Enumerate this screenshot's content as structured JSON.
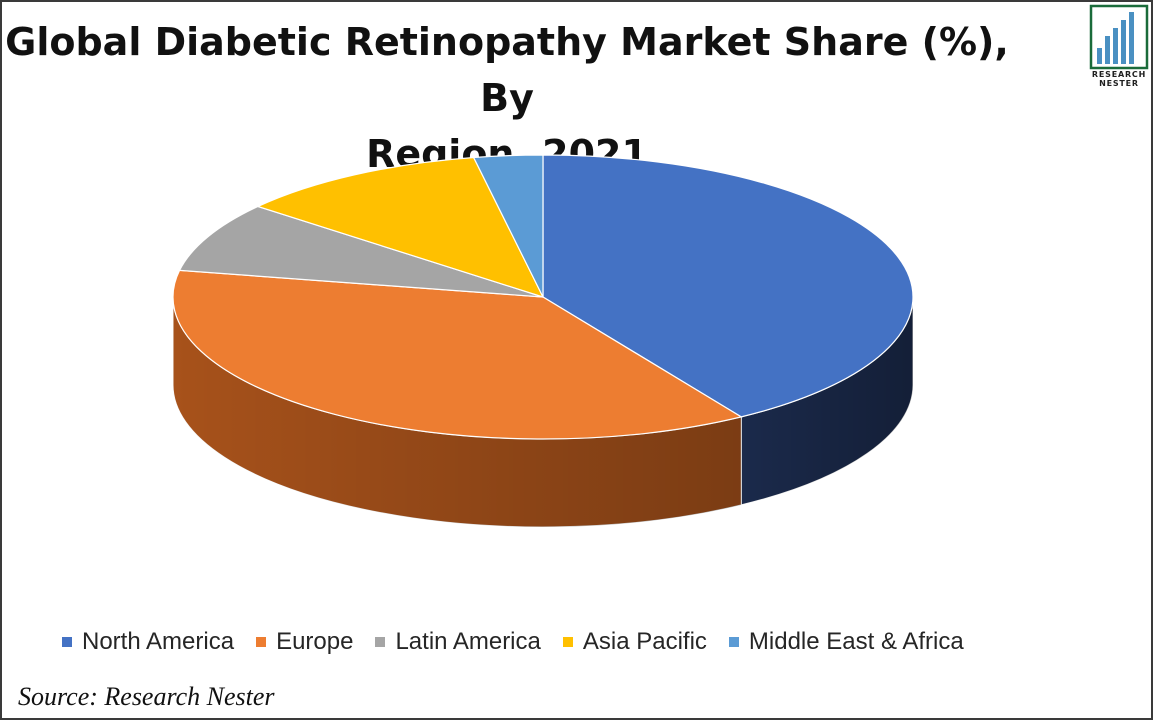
{
  "header": {
    "title_line1": "Global Diabetic Retinopathy Market Share (%), By",
    "title_line2": "Region, 2021"
  },
  "logo": {
    "line1": "RESEARCH",
    "line2": "NESTER",
    "icon": "bar-chart-logo-icon",
    "color": "#1a6b3a"
  },
  "footer": {
    "source": "Source: Research Nester"
  },
  "chart_data": {
    "type": "pie",
    "style": "3d",
    "title": "Global Diabetic Retinopathy Market Share (%), By Region, 2021",
    "legend_position": "bottom",
    "series": [
      {
        "name": "North America",
        "value": 41,
        "color": "#4472c4",
        "side_color": "#1c2c4f"
      },
      {
        "name": "Europe",
        "value": 37,
        "color": "#ed7d31",
        "side_color": "#b0561c"
      },
      {
        "name": "Latin America",
        "value": 8,
        "color": "#a5a5a5",
        "side_color": "#6d6d6d"
      },
      {
        "name": "Asia Pacific",
        "value": 11,
        "color": "#ffc000",
        "side_color": "#b38600"
      },
      {
        "name": "Middle East & Africa",
        "value": 3,
        "color": "#5b9bd5",
        "side_color": "#2f5f88"
      }
    ]
  }
}
